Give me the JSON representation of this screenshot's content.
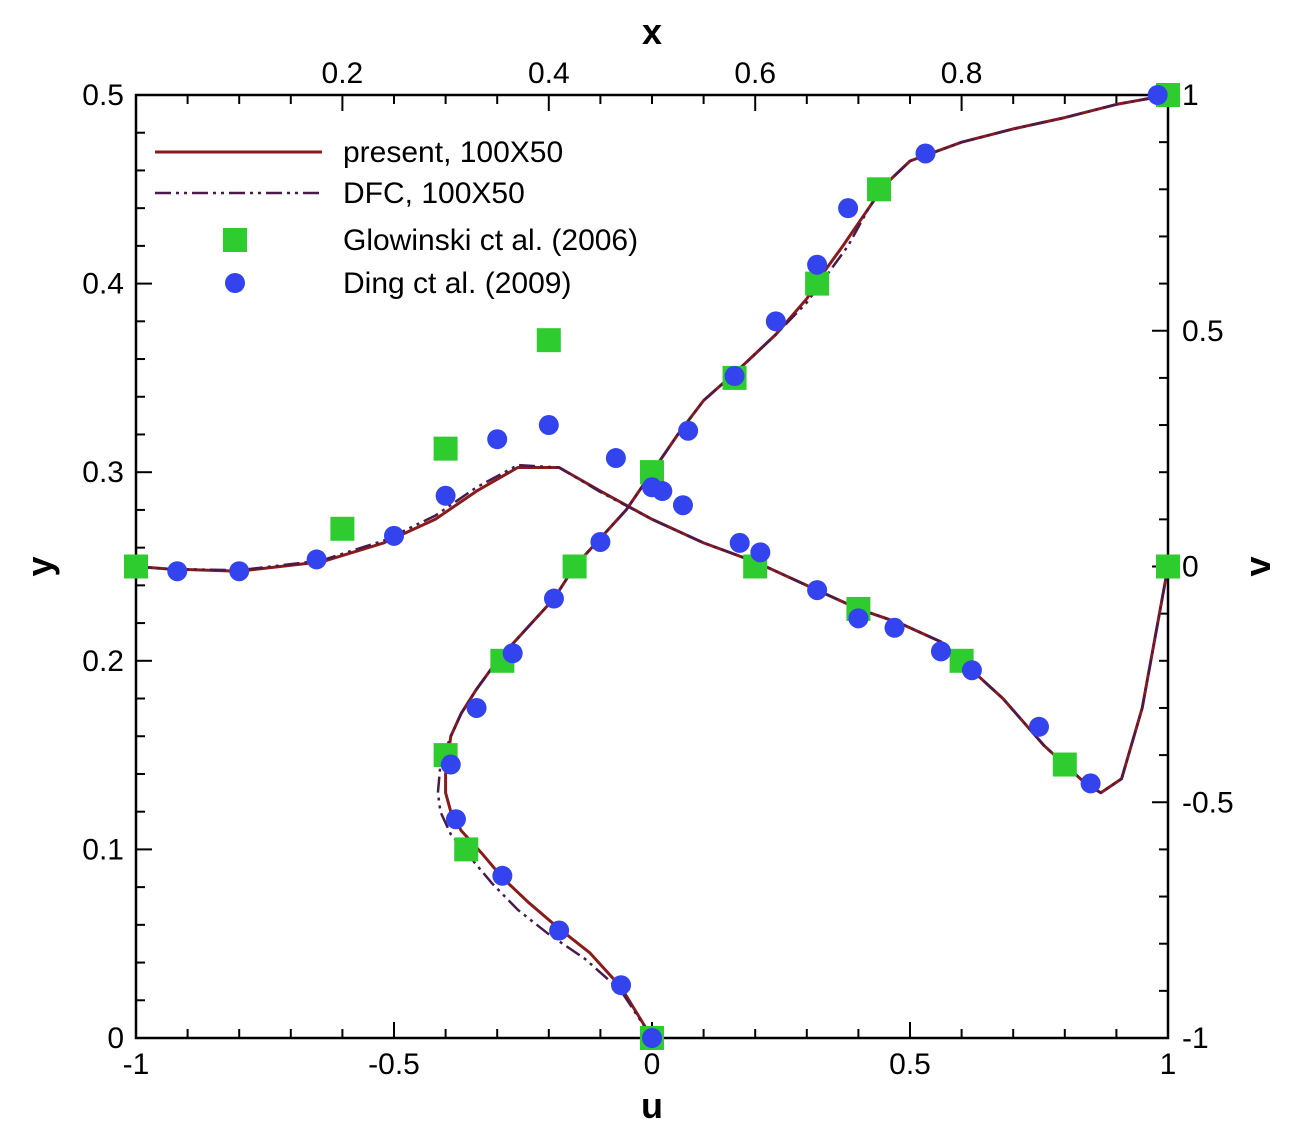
{
  "chart_data": {
    "type": "line",
    "title": "",
    "axes": {
      "bottom": {
        "label": "u",
        "range": [
          -1,
          1
        ],
        "ticks": [
          -1,
          -0.5,
          0,
          0.5,
          1
        ],
        "tick_labels": [
          "-1",
          "-0.5",
          "0",
          "0.5",
          "1"
        ]
      },
      "left": {
        "label": "y",
        "range": [
          0,
          0.5
        ],
        "ticks": [
          0,
          0.1,
          0.2,
          0.3,
          0.4,
          0.5
        ],
        "tick_labels": [
          "0",
          "0.1",
          "0.2",
          "0.3",
          "0.4",
          "0.5"
        ]
      },
      "top": {
        "label": "x",
        "range": [
          0,
          1
        ],
        "ticks": [
          0.2,
          0.4,
          0.6,
          0.8
        ],
        "tick_labels": [
          "0.2",
          "0.4",
          "0.6",
          "0.8"
        ]
      },
      "right": {
        "label": "v",
        "range": [
          -1,
          1
        ],
        "ticks": [
          -1,
          -0.5,
          0,
          0.5,
          1
        ],
        "tick_labels": [
          "-1",
          "-0.5",
          "0",
          "0.5",
          "1"
        ]
      }
    },
    "legend": {
      "position": "top-left",
      "entries": [
        {
          "label": "present, 100X50",
          "style": "solid-line",
          "color": "#8b1a1a"
        },
        {
          "label": "DFC, 100X50",
          "style": "dash-dot-line",
          "color": "#4a1a4a"
        },
        {
          "label": "Glowinski ct al. (2006)",
          "style": "square",
          "color": "#2ecc2e"
        },
        {
          "label": "Ding ct al. (2009)",
          "style": "circle",
          "color": "#3344ee"
        }
      ]
    },
    "series": [
      {
        "name": "present, 100X50 (u vs y)",
        "style": "solid",
        "color": "#8b1a1a",
        "points": [
          [
            0,
            0
          ],
          [
            -0.06,
            0.027
          ],
          [
            -0.12,
            0.045
          ],
          [
            -0.18,
            0.058
          ],
          [
            -0.24,
            0.072
          ],
          [
            -0.29,
            0.085
          ],
          [
            -0.33,
            0.098
          ],
          [
            -0.37,
            0.11
          ],
          [
            -0.39,
            0.12
          ],
          [
            -0.4,
            0.13
          ],
          [
            -0.4,
            0.14
          ],
          [
            -0.39,
            0.16
          ],
          [
            -0.37,
            0.172
          ],
          [
            -0.34,
            0.185
          ],
          [
            -0.3,
            0.2
          ],
          [
            -0.25,
            0.215
          ],
          [
            -0.19,
            0.233
          ],
          [
            -0.15,
            0.25
          ],
          [
            -0.1,
            0.265
          ],
          [
            -0.05,
            0.28
          ],
          [
            0,
            0.3
          ],
          [
            0.05,
            0.32
          ],
          [
            0.1,
            0.338
          ],
          [
            0.17,
            0.355
          ],
          [
            0.24,
            0.373
          ],
          [
            0.3,
            0.392
          ],
          [
            0.33,
            0.405
          ],
          [
            0.37,
            0.42
          ],
          [
            0.42,
            0.44
          ],
          [
            0.45,
            0.452
          ],
          [
            0.5,
            0.465
          ],
          [
            0.6,
            0.475
          ],
          [
            0.7,
            0.482
          ],
          [
            0.8,
            0.488
          ],
          [
            0.9,
            0.495
          ],
          [
            1,
            0.5
          ]
        ]
      },
      {
        "name": "DFC, 100X50 (u vs y)",
        "style": "dashdot",
        "color": "#4a1a4a",
        "points": [
          [
            0,
            0
          ],
          [
            -0.06,
            0.025
          ],
          [
            -0.13,
            0.042
          ],
          [
            -0.2,
            0.055
          ],
          [
            -0.26,
            0.068
          ],
          [
            -0.31,
            0.082
          ],
          [
            -0.35,
            0.095
          ],
          [
            -0.39,
            0.108
          ],
          [
            -0.41,
            0.12
          ],
          [
            -0.415,
            0.13
          ],
          [
            -0.41,
            0.145
          ],
          [
            -0.39,
            0.16
          ],
          [
            -0.37,
            0.172
          ],
          [
            -0.34,
            0.185
          ],
          [
            -0.3,
            0.2
          ],
          [
            -0.25,
            0.215
          ],
          [
            -0.19,
            0.233
          ],
          [
            -0.15,
            0.25
          ],
          [
            -0.1,
            0.265
          ],
          [
            -0.05,
            0.28
          ],
          [
            0,
            0.3
          ],
          [
            0.05,
            0.32
          ],
          [
            0.1,
            0.338
          ],
          [
            0.17,
            0.355
          ],
          [
            0.24,
            0.373
          ],
          [
            0.3,
            0.39
          ],
          [
            0.34,
            0.405
          ],
          [
            0.38,
            0.42
          ],
          [
            0.42,
            0.44
          ],
          [
            0.45,
            0.452
          ],
          [
            0.5,
            0.465
          ],
          [
            0.6,
            0.475
          ],
          [
            0.7,
            0.482
          ],
          [
            0.8,
            0.488
          ],
          [
            0.9,
            0.495
          ],
          [
            1,
            0.5
          ]
        ]
      },
      {
        "name": "present, 100X50 (x vs v)",
        "style": "solid",
        "color": "#8b1a1a",
        "points": [
          [
            0,
            0
          ],
          [
            0.03,
            -0.005
          ],
          [
            0.1,
            -0.01
          ],
          [
            0.18,
            0.01
          ],
          [
            0.24,
            0.05
          ],
          [
            0.29,
            0.1
          ],
          [
            0.33,
            0.16
          ],
          [
            0.37,
            0.21
          ],
          [
            0.41,
            0.21
          ],
          [
            0.45,
            0.16
          ],
          [
            0.5,
            0.1
          ],
          [
            0.55,
            0.05
          ],
          [
            0.6,
            0.01
          ],
          [
            0.66,
            -0.05
          ],
          [
            0.7,
            -0.09
          ],
          [
            0.74,
            -0.12
          ],
          [
            0.78,
            -0.16
          ],
          [
            0.8,
            -0.2
          ],
          [
            0.84,
            -0.28
          ],
          [
            0.88,
            -0.38
          ],
          [
            0.92,
            -0.46
          ],
          [
            0.935,
            -0.48
          ],
          [
            0.955,
            -0.45
          ],
          [
            0.975,
            -0.3
          ],
          [
            0.99,
            -0.12
          ],
          [
            1,
            0
          ]
        ]
      },
      {
        "name": "DFC, 100X50 (x vs v)",
        "style": "dashdot",
        "color": "#4a1a4a",
        "points": [
          [
            0,
            0
          ],
          [
            0.03,
            -0.005
          ],
          [
            0.1,
            -0.008
          ],
          [
            0.18,
            0.013
          ],
          [
            0.24,
            0.055
          ],
          [
            0.29,
            0.108
          ],
          [
            0.33,
            0.168
          ],
          [
            0.37,
            0.215
          ],
          [
            0.41,
            0.21
          ],
          [
            0.45,
            0.158
          ],
          [
            0.5,
            0.1
          ],
          [
            0.55,
            0.05
          ],
          [
            0.6,
            0.01
          ],
          [
            0.66,
            -0.05
          ],
          [
            0.7,
            -0.09
          ],
          [
            0.74,
            -0.12
          ],
          [
            0.78,
            -0.16
          ],
          [
            0.8,
            -0.2
          ],
          [
            0.84,
            -0.28
          ],
          [
            0.88,
            -0.38
          ],
          [
            0.92,
            -0.46
          ],
          [
            0.935,
            -0.48
          ],
          [
            0.955,
            -0.45
          ],
          [
            0.975,
            -0.3
          ],
          [
            0.99,
            -0.12
          ],
          [
            1,
            0
          ]
        ]
      },
      {
        "name": "Glowinski ct al. (2006) (u vs y)",
        "style": "square",
        "color": "#2ecc2e",
        "points": [
          [
            0,
            0
          ],
          [
            -0.36,
            0.1
          ],
          [
            -0.4,
            0.15
          ],
          [
            -0.29,
            0.2
          ],
          [
            -0.15,
            0.25
          ],
          [
            0,
            0.3
          ],
          [
            0.16,
            0.35
          ],
          [
            0.32,
            0.4
          ],
          [
            0.44,
            0.45
          ],
          [
            1,
            0.5
          ]
        ]
      },
      {
        "name": "Glowinski ct al. (2006) (x vs v)",
        "style": "square",
        "color": "#2ecc2e",
        "points": [
          [
            0,
            0
          ],
          [
            0.2,
            0.08
          ],
          [
            0.3,
            0.25
          ],
          [
            0.4,
            0.48
          ],
          [
            0.5,
            0.2
          ],
          [
            0.6,
            0
          ],
          [
            0.7,
            -0.09
          ],
          [
            0.8,
            -0.2
          ],
          [
            0.9,
            -0.42
          ],
          [
            1,
            0
          ]
        ]
      },
      {
        "name": "Ding ct al. (2009) (u vs y)",
        "style": "circle",
        "color": "#3344ee",
        "points": [
          [
            0,
            0
          ],
          [
            -0.06,
            0.028
          ],
          [
            -0.18,
            0.057
          ],
          [
            -0.29,
            0.086
          ],
          [
            -0.38,
            0.116
          ],
          [
            -0.39,
            0.145
          ],
          [
            -0.34,
            0.175
          ],
          [
            -0.27,
            0.204
          ],
          [
            -0.19,
            0.233
          ],
          [
            -0.1,
            0.263
          ],
          [
            0,
            0.292
          ],
          [
            0.07,
            0.322
          ],
          [
            0.16,
            0.351
          ],
          [
            0.24,
            0.38
          ],
          [
            0.32,
            0.41
          ],
          [
            0.38,
            0.44
          ],
          [
            0.53,
            0.469
          ],
          [
            0.98,
            0.5
          ]
        ]
      },
      {
        "name": "Ding ct al. (2009) (x vs v)",
        "style": "circle",
        "color": "#3344ee",
        "points": [
          [
            0.04,
            -0.01
          ],
          [
            0.1,
            -0.01
          ],
          [
            0.175,
            0.015
          ],
          [
            0.25,
            0.065
          ],
          [
            0.3,
            0.15
          ],
          [
            0.35,
            0.27
          ],
          [
            0.4,
            0.3
          ],
          [
            0.465,
            0.23
          ],
          [
            0.51,
            0.16
          ],
          [
            0.53,
            0.13
          ],
          [
            0.585,
            0.05
          ],
          [
            0.605,
            0.03
          ],
          [
            0.66,
            -0.05
          ],
          [
            0.7,
            -0.11
          ],
          [
            0.735,
            -0.13
          ],
          [
            0.78,
            -0.18
          ],
          [
            0.81,
            -0.22
          ],
          [
            0.875,
            -0.34
          ],
          [
            0.925,
            -0.46
          ]
        ]
      }
    ]
  }
}
